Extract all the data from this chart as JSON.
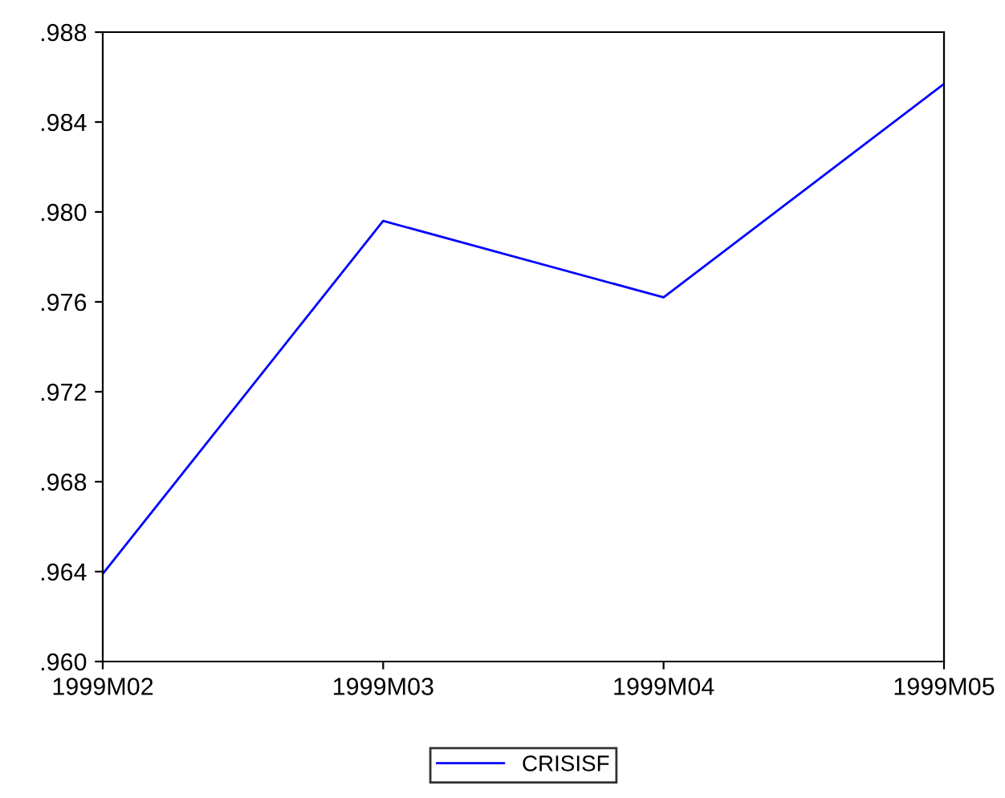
{
  "chart_data": {
    "type": "line",
    "categories": [
      "1999M02",
      "1999M03",
      "1999M04",
      "1999M05"
    ],
    "series": [
      {
        "name": "CRISISF",
        "color": "#0000ff",
        "values": [
          0.9639,
          0.9796,
          0.9762,
          0.9857
        ]
      }
    ],
    "ylim": [
      0.96,
      0.988
    ],
    "yticks": [
      {
        "value": 0.96,
        "label": ".960"
      },
      {
        "value": 0.964,
        "label": ".964"
      },
      {
        "value": 0.968,
        "label": ".968"
      },
      {
        "value": 0.972,
        "label": ".972"
      },
      {
        "value": 0.976,
        "label": ".976"
      },
      {
        "value": 0.98,
        "label": ".980"
      },
      {
        "value": 0.984,
        "label": ".984"
      },
      {
        "value": 0.988,
        "label": ".988"
      }
    ],
    "grid": false,
    "legend": "bottom",
    "marker": "none",
    "line_style": "solid"
  }
}
